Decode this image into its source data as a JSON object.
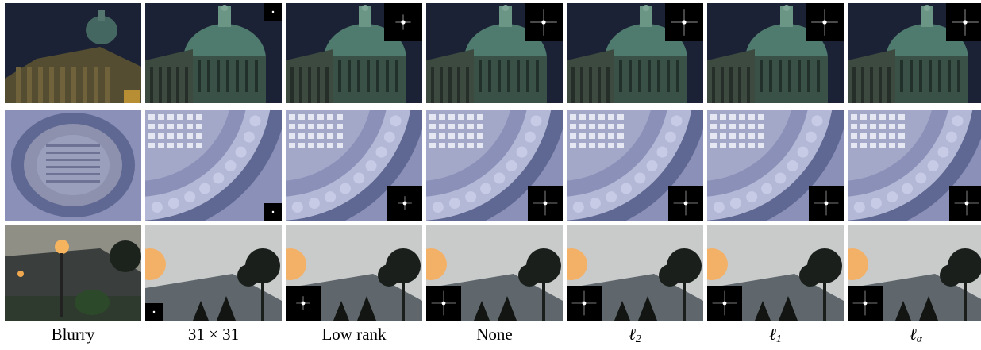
{
  "columns": [
    {
      "key": "blurry",
      "label": "Blurry"
    },
    {
      "key": "k31",
      "label": "31 × 31"
    },
    {
      "key": "lowrank",
      "label": "Low rank"
    },
    {
      "key": "none",
      "label": "None"
    },
    {
      "key": "l2",
      "label": "ℓ2",
      "base": "ℓ",
      "sub": "2"
    },
    {
      "key": "l1",
      "label": "ℓ1",
      "base": "ℓ",
      "sub": "1"
    },
    {
      "key": "la",
      "label": "ℓα",
      "base": "ℓ",
      "sub": "α"
    }
  ],
  "rows": [
    {
      "scene": "capitol-dome",
      "colors": {
        "sky": "#1b2235",
        "dome": "#4f7a6e",
        "building": "#3c4a40"
      }
    },
    {
      "scene": "engraved-plaque",
      "colors": {
        "base": "#8a90b8",
        "ring": "#5f6892",
        "relief": "#c7cbe6"
      }
    },
    {
      "scene": "dusk-lamp-trees",
      "colors": {
        "sky": "#c9cbcb",
        "lamp": "#f3b067",
        "roof": "#5f676c",
        "tree": "#1a1f1c"
      }
    }
  ]
}
